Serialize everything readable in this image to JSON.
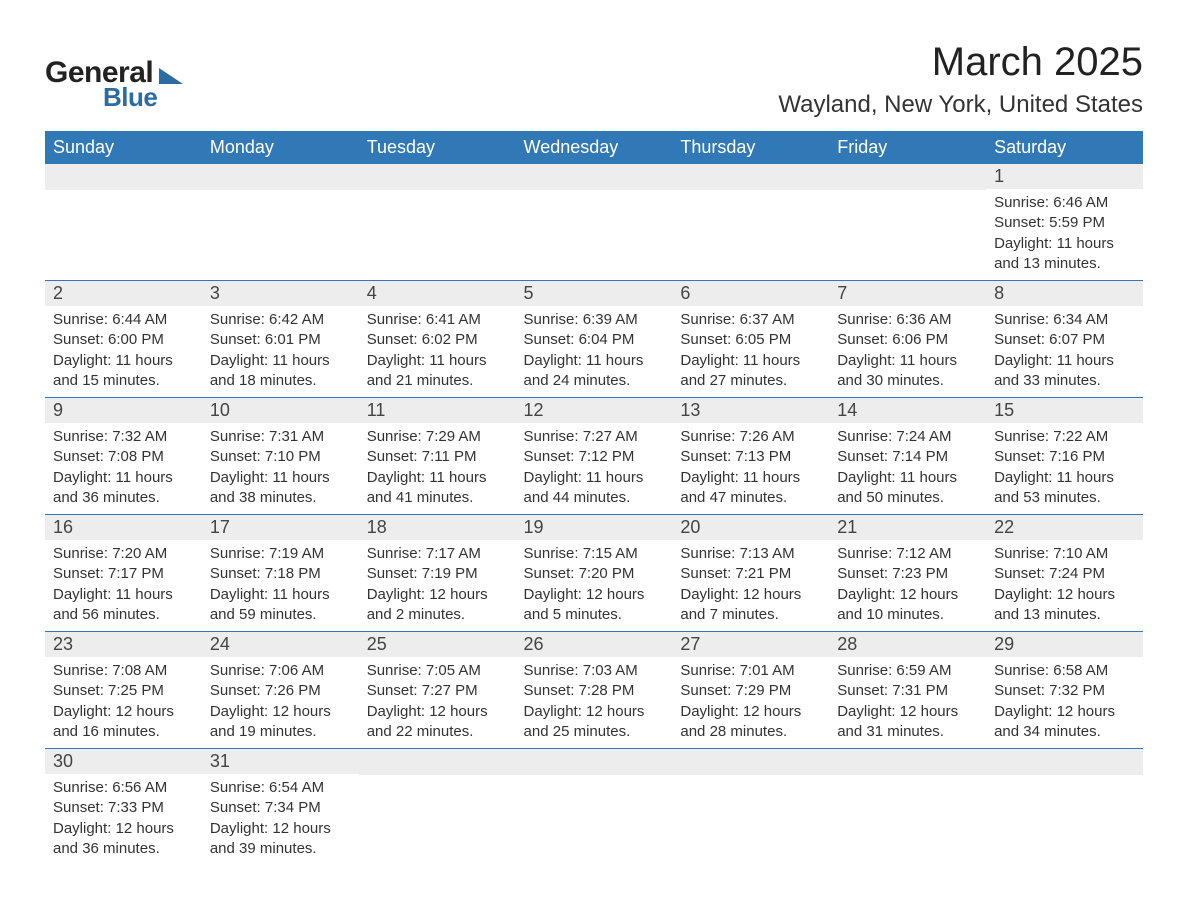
{
  "logo": {
    "word1": "General",
    "word2": "Blue"
  },
  "title": "March 2025",
  "location": "Wayland, New York, United States",
  "day_headers": [
    "Sunday",
    "Monday",
    "Tuesday",
    "Wednesday",
    "Thursday",
    "Friday",
    "Saturday"
  ],
  "colors": {
    "header_bg": "#3178b6",
    "header_text": "#ffffff",
    "daynum_bg": "#ededed",
    "row_divider": "#3178b6",
    "logo_blue": "#2b6ca3"
  },
  "labels": {
    "sunrise": "Sunrise:",
    "sunset": "Sunset:",
    "daylight": "Daylight:"
  },
  "weeks": [
    [
      null,
      null,
      null,
      null,
      null,
      null,
      {
        "n": "1",
        "sunrise": "6:46 AM",
        "sunset": "5:59 PM",
        "daylight": "11 hours and 13 minutes."
      }
    ],
    [
      {
        "n": "2",
        "sunrise": "6:44 AM",
        "sunset": "6:00 PM",
        "daylight": "11 hours and 15 minutes."
      },
      {
        "n": "3",
        "sunrise": "6:42 AM",
        "sunset": "6:01 PM",
        "daylight": "11 hours and 18 minutes."
      },
      {
        "n": "4",
        "sunrise": "6:41 AM",
        "sunset": "6:02 PM",
        "daylight": "11 hours and 21 minutes."
      },
      {
        "n": "5",
        "sunrise": "6:39 AM",
        "sunset": "6:04 PM",
        "daylight": "11 hours and 24 minutes."
      },
      {
        "n": "6",
        "sunrise": "6:37 AM",
        "sunset": "6:05 PM",
        "daylight": "11 hours and 27 minutes."
      },
      {
        "n": "7",
        "sunrise": "6:36 AM",
        "sunset": "6:06 PM",
        "daylight": "11 hours and 30 minutes."
      },
      {
        "n": "8",
        "sunrise": "6:34 AM",
        "sunset": "6:07 PM",
        "daylight": "11 hours and 33 minutes."
      }
    ],
    [
      {
        "n": "9",
        "sunrise": "7:32 AM",
        "sunset": "7:08 PM",
        "daylight": "11 hours and 36 minutes."
      },
      {
        "n": "10",
        "sunrise": "7:31 AM",
        "sunset": "7:10 PM",
        "daylight": "11 hours and 38 minutes."
      },
      {
        "n": "11",
        "sunrise": "7:29 AM",
        "sunset": "7:11 PM",
        "daylight": "11 hours and 41 minutes."
      },
      {
        "n": "12",
        "sunrise": "7:27 AM",
        "sunset": "7:12 PM",
        "daylight": "11 hours and 44 minutes."
      },
      {
        "n": "13",
        "sunrise": "7:26 AM",
        "sunset": "7:13 PM",
        "daylight": "11 hours and 47 minutes."
      },
      {
        "n": "14",
        "sunrise": "7:24 AM",
        "sunset": "7:14 PM",
        "daylight": "11 hours and 50 minutes."
      },
      {
        "n": "15",
        "sunrise": "7:22 AM",
        "sunset": "7:16 PM",
        "daylight": "11 hours and 53 minutes."
      }
    ],
    [
      {
        "n": "16",
        "sunrise": "7:20 AM",
        "sunset": "7:17 PM",
        "daylight": "11 hours and 56 minutes."
      },
      {
        "n": "17",
        "sunrise": "7:19 AM",
        "sunset": "7:18 PM",
        "daylight": "11 hours and 59 minutes."
      },
      {
        "n": "18",
        "sunrise": "7:17 AM",
        "sunset": "7:19 PM",
        "daylight": "12 hours and 2 minutes."
      },
      {
        "n": "19",
        "sunrise": "7:15 AM",
        "sunset": "7:20 PM",
        "daylight": "12 hours and 5 minutes."
      },
      {
        "n": "20",
        "sunrise": "7:13 AM",
        "sunset": "7:21 PM",
        "daylight": "12 hours and 7 minutes."
      },
      {
        "n": "21",
        "sunrise": "7:12 AM",
        "sunset": "7:23 PM",
        "daylight": "12 hours and 10 minutes."
      },
      {
        "n": "22",
        "sunrise": "7:10 AM",
        "sunset": "7:24 PM",
        "daylight": "12 hours and 13 minutes."
      }
    ],
    [
      {
        "n": "23",
        "sunrise": "7:08 AM",
        "sunset": "7:25 PM",
        "daylight": "12 hours and 16 minutes."
      },
      {
        "n": "24",
        "sunrise": "7:06 AM",
        "sunset": "7:26 PM",
        "daylight": "12 hours and 19 minutes."
      },
      {
        "n": "25",
        "sunrise": "7:05 AM",
        "sunset": "7:27 PM",
        "daylight": "12 hours and 22 minutes."
      },
      {
        "n": "26",
        "sunrise": "7:03 AM",
        "sunset": "7:28 PM",
        "daylight": "12 hours and 25 minutes."
      },
      {
        "n": "27",
        "sunrise": "7:01 AM",
        "sunset": "7:29 PM",
        "daylight": "12 hours and 28 minutes."
      },
      {
        "n": "28",
        "sunrise": "6:59 AM",
        "sunset": "7:31 PM",
        "daylight": "12 hours and 31 minutes."
      },
      {
        "n": "29",
        "sunrise": "6:58 AM",
        "sunset": "7:32 PM",
        "daylight": "12 hours and 34 minutes."
      }
    ],
    [
      {
        "n": "30",
        "sunrise": "6:56 AM",
        "sunset": "7:33 PM",
        "daylight": "12 hours and 36 minutes."
      },
      {
        "n": "31",
        "sunrise": "6:54 AM",
        "sunset": "7:34 PM",
        "daylight": "12 hours and 39 minutes."
      },
      null,
      null,
      null,
      null,
      null
    ]
  ]
}
